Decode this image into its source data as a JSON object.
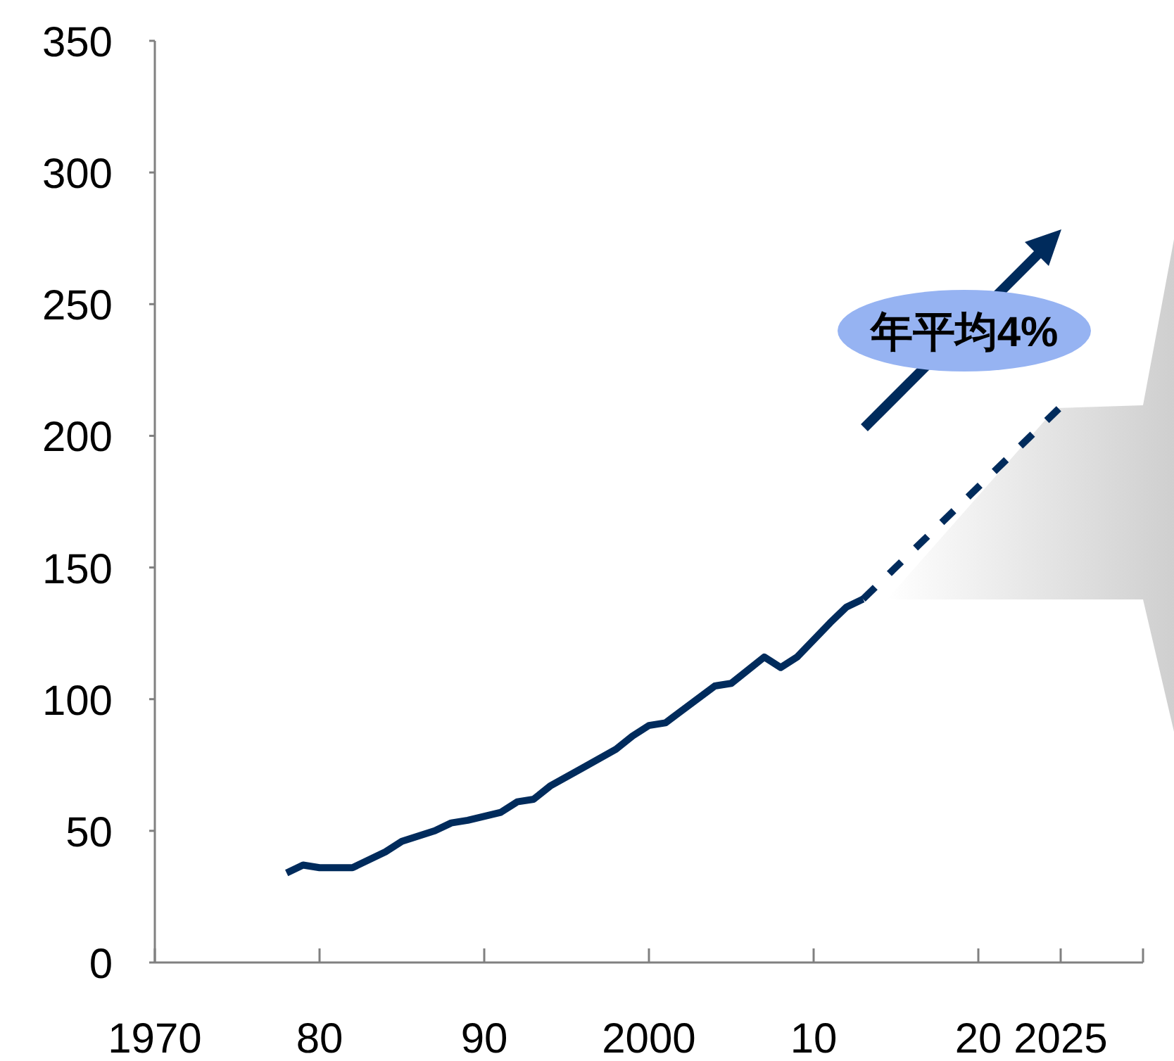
{
  "chart_data": {
    "type": "line",
    "marker": "none",
    "xlim": [
      1970,
      2030
    ],
    "ylim": [
      0,
      350
    ],
    "xticks": [
      {
        "value": 1970,
        "label": "1970"
      },
      {
        "value": 1980,
        "label": "80"
      },
      {
        "value": 1990,
        "label": "90"
      },
      {
        "value": 2000,
        "label": "2000"
      },
      {
        "value": 2010,
        "label": "10"
      },
      {
        "value": 2020,
        "label": "20"
      },
      {
        "value": 2025,
        "label": "2025"
      },
      {
        "value": 2030,
        "label": null
      }
    ],
    "yticks": [
      0,
      50,
      100,
      150,
      200,
      250,
      300,
      350
    ],
    "series": [
      {
        "color": "#002b5c",
        "line_style": "solid",
        "x": [
          1978,
          1979,
          1980,
          1982,
          1984,
          1985,
          1987,
          1988,
          1989,
          1991,
          1992,
          1993,
          1994,
          1996,
          1998,
          1999,
          2000,
          2001,
          2004,
          2005,
          2007,
          2008,
          2009,
          2011,
          2012,
          2013
        ],
        "values": [
          34,
          37,
          36,
          36,
          42,
          46,
          50,
          53,
          54,
          57,
          61,
          62,
          67,
          74,
          81,
          86,
          90,
          91,
          105,
          106,
          116,
          112,
          116,
          129,
          135,
          138
        ]
      },
      {
        "color": "#002b5c",
        "line_style": "dashed",
        "x": [
          2013,
          2025
        ],
        "values": [
          138,
          211
        ]
      }
    ],
    "annotations": [
      "年平均4%"
    ]
  }
}
